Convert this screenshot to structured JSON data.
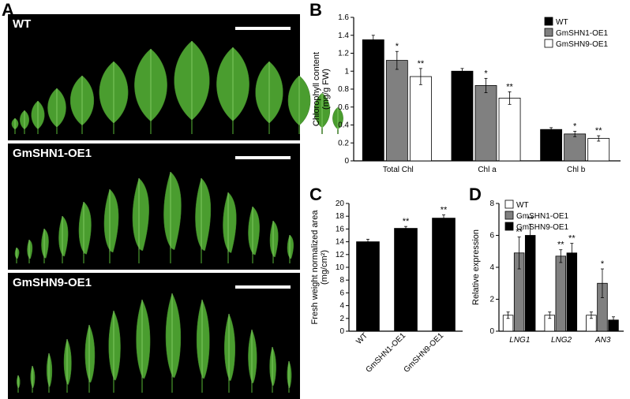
{
  "panelA": {
    "label": "A",
    "rows": [
      {
        "label": "WT",
        "leaf_shape": "broad",
        "heights": [
          20,
          30,
          42,
          58,
          74,
          92,
          108,
          118,
          110,
          92,
          74,
          52,
          34
        ],
        "widths": [
          10,
          14,
          20,
          28,
          36,
          44,
          50,
          54,
          50,
          42,
          34,
          24,
          16
        ]
      },
      {
        "label": "GmSHN1-OE1",
        "leaf_shape": "spoon",
        "heights": [
          20,
          30,
          44,
          60,
          78,
          94,
          108,
          116,
          108,
          90,
          72,
          54,
          36
        ],
        "widths": [
          8,
          10,
          14,
          18,
          24,
          28,
          32,
          34,
          30,
          26,
          22,
          16,
          12
        ]
      },
      {
        "label": "GmSHN9-OE1",
        "leaf_shape": "narrow",
        "heights": [
          22,
          34,
          50,
          68,
          86,
          104,
          118,
          126,
          118,
          100,
          80,
          58,
          40
        ],
        "widths": [
          6,
          8,
          10,
          14,
          18,
          22,
          26,
          28,
          24,
          20,
          16,
          12,
          8
        ]
      }
    ],
    "leaf_colors": {
      "fill": "#4a9d2f",
      "stroke": "#3a7a24",
      "vein": "#7fc95f"
    }
  },
  "panelB": {
    "label": "B",
    "title_y": "Chlorophyll content\n(mg/g FW)",
    "ylim": [
      0,
      1.6
    ],
    "ytick_step": 0.2,
    "categories": [
      "Total Chl",
      "Chl a",
      "Chl b"
    ],
    "series": [
      {
        "name": "WT",
        "color": "#000000",
        "values": [
          1.35,
          1.0,
          0.35
        ],
        "err": [
          0.05,
          0.03,
          0.02
        ],
        "sig": [
          "",
          "",
          ""
        ]
      },
      {
        "name": "GmSHN1-OE1",
        "color": "#808080",
        "values": [
          1.12,
          0.84,
          0.3
        ],
        "err": [
          0.1,
          0.08,
          0.03
        ],
        "sig": [
          "*",
          "*",
          "*"
        ]
      },
      {
        "name": "GmSHN9-OE1",
        "color": "#ffffff",
        "values": [
          0.94,
          0.7,
          0.25
        ],
        "err": [
          0.09,
          0.07,
          0.03
        ],
        "sig": [
          "**",
          "**",
          "**"
        ]
      }
    ],
    "bar_stroke": "#000000",
    "legend_pos": "top-right"
  },
  "panelC": {
    "label": "C",
    "title_y": "Fresh weight normalized area\n(mg/cm²)",
    "ylim": [
      0,
      20
    ],
    "ytick_step": 2,
    "categories": [
      "WT",
      "GmSHN1-OE1",
      "GmSHN9-OE1"
    ],
    "values": [
      14.0,
      16.1,
      17.7
    ],
    "err": [
      0.4,
      0.3,
      0.5
    ],
    "sig": [
      "",
      "**",
      "**"
    ],
    "bar_color": "#000000"
  },
  "panelD": {
    "label": "D",
    "title_y": "Relative expression",
    "ylim": [
      0,
      8
    ],
    "ytick_step": 2,
    "categories": [
      "LNG1",
      "LNG2",
      "AN3"
    ],
    "categories_italic": true,
    "series": [
      {
        "name": "WT",
        "color": "#ffffff",
        "values": [
          1.0,
          1.0,
          1.0
        ],
        "err": [
          0.2,
          0.2,
          0.2
        ],
        "sig": [
          "",
          "",
          ""
        ]
      },
      {
        "name": "GmSHN1-OE1",
        "color": "#808080",
        "values": [
          4.9,
          4.7,
          3.0
        ],
        "err": [
          1.0,
          0.4,
          0.9
        ],
        "sig": [
          "**",
          "**",
          "*"
        ]
      },
      {
        "name": "GmSHN9-OE1",
        "color": "#000000",
        "values": [
          6.0,
          4.9,
          0.7
        ],
        "err": [
          0.7,
          0.6,
          0.2
        ],
        "sig": [
          "**",
          "**",
          ""
        ]
      }
    ],
    "bar_stroke": "#000000",
    "legend_pos": "top-left"
  }
}
